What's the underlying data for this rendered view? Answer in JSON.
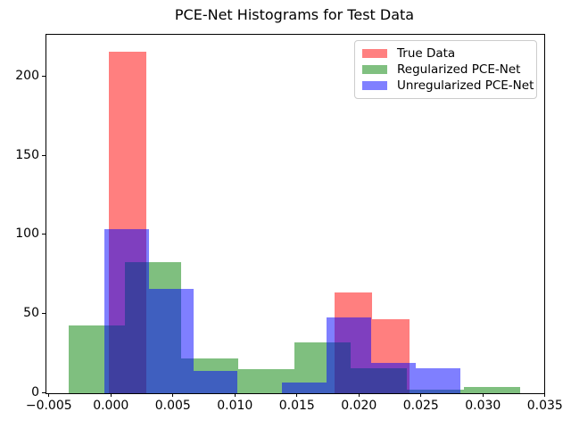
{
  "chart_data": {
    "type": "bar",
    "subtype": "overlapping-histograms",
    "title": "PCE-Net Histograms for Test Data",
    "xlabel": "",
    "ylabel": "",
    "xlim": [
      -0.00527,
      0.03487
    ],
    "ylim": [
      0,
      227
    ],
    "grid": false,
    "legend_position": "upper-right",
    "xticks": {
      "values": [
        -0.005,
        0.0,
        0.005,
        0.01,
        0.015,
        0.02,
        0.025,
        0.03,
        0.035
      ],
      "labels": [
        "−0.005",
        "0.000",
        "0.005",
        "0.010",
        "0.015",
        "0.020",
        "0.025",
        "0.030",
        "0.035"
      ]
    },
    "yticks": {
      "values": [
        0,
        50,
        100,
        150,
        200
      ],
      "labels": [
        "0",
        "50",
        "100",
        "150",
        "200"
      ]
    },
    "series": [
      {
        "name": "True Data",
        "base_color": "#ff0000",
        "fill": "rgba(255,0,0,0.5)",
        "swatch": "#ff8080",
        "bin_start": -0.00022,
        "bin_width": 0.00303,
        "heights": [
          216,
          0,
          0,
          0,
          0,
          0,
          64,
          47
        ]
      },
      {
        "name": "Regularized PCE-Net",
        "base_color": "#008000",
        "fill": "rgba(0,128,0,0.5)",
        "swatch": "#80c080",
        "bin_start": -0.003475,
        "bin_width": 0.004548,
        "heights": [
          43,
          83,
          22,
          15,
          32,
          16,
          2,
          4
        ]
      },
      {
        "name": "Unregularized PCE-Net",
        "base_color": "#0000ff",
        "fill": "rgba(0,0,255,0.5)",
        "swatch": "#8080ff",
        "bin_start": -0.0006,
        "bin_width": 0.003586,
        "heights": [
          104,
          66,
          14,
          0,
          7,
          48,
          19,
          16
        ]
      }
    ]
  }
}
